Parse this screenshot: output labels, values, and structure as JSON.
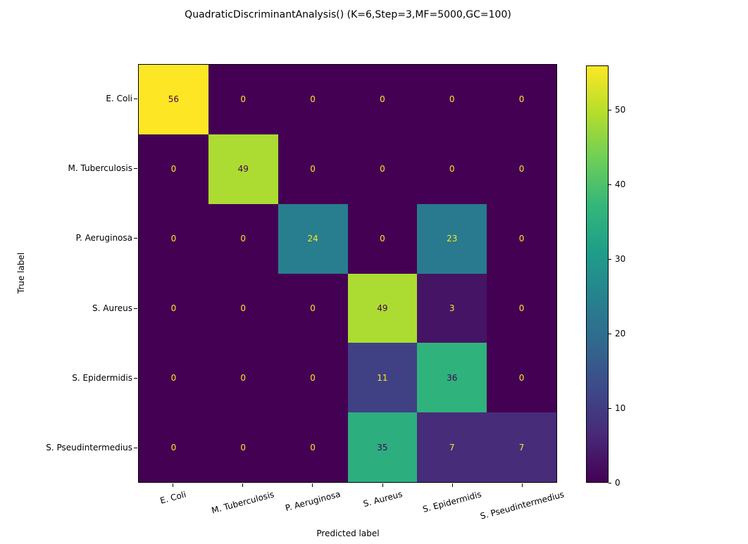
{
  "figure": {
    "background": "#ffffff",
    "text_color": "#000000"
  },
  "chart_data": {
    "type": "heatmap",
    "subtype": "confusion_matrix",
    "title": "QuadraticDiscriminantAnalysis() (K=6,Step=3,MF=5000,GC=100)",
    "xlabel": "Predicted label",
    "ylabel": "True label",
    "categories": [
      "E. Coli",
      "M. Tuberculosis",
      "P. Aeruginosa",
      "S. Aureus",
      "S. Epidermidis",
      "S. Pseudintermedius"
    ],
    "matrix": [
      [
        56,
        0,
        0,
        0,
        0,
        0
      ],
      [
        0,
        49,
        0,
        0,
        0,
        0
      ],
      [
        0,
        0,
        24,
        0,
        23,
        0
      ],
      [
        0,
        0,
        0,
        49,
        3,
        0
      ],
      [
        0,
        0,
        0,
        11,
        36,
        0
      ],
      [
        0,
        0,
        0,
        35,
        7,
        7
      ]
    ],
    "colormap": "viridis",
    "vmin": 0,
    "vmax": 56,
    "colorbar_ticks": [
      0,
      10,
      20,
      30,
      40,
      50
    ],
    "legend": "colorbar-right",
    "grid": false,
    "colors": {
      "cmap_min": "#440154",
      "cmap_max": "#fde725",
      "viridis_stops": [
        "#440154",
        "#482878",
        "#3e4989",
        "#31688e",
        "#26828e",
        "#1f9e89",
        "#35b779",
        "#6ece58",
        "#b5de2b",
        "#fde725"
      ]
    }
  }
}
